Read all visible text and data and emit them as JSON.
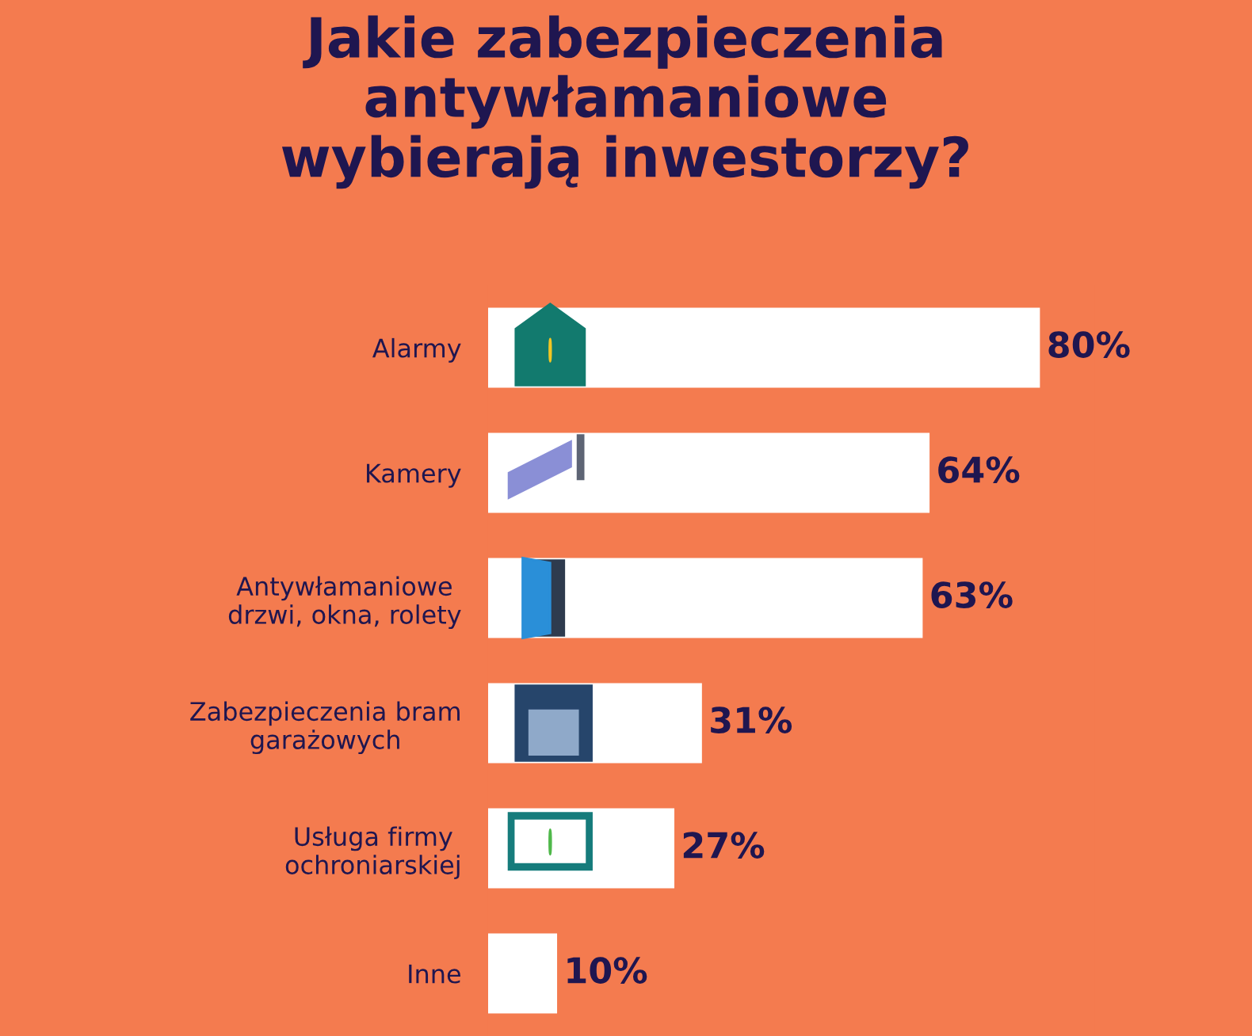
{
  "chart_data": {
    "type": "bar",
    "orientation": "horizontal",
    "title": "Jakie zabezpieczenia\nantywłamaniowe\nwybierają inwestorzy?",
    "categories": [
      "Alarmy",
      "Kamery",
      "Antywłamaniowe\ndrzwi, okna, rolety",
      "Zabezpieczenia bram\ngarażowych",
      "Usługa firmy\nochroniarskiej",
      "Inne"
    ],
    "values": [
      80,
      64,
      63,
      31,
      27,
      10
    ],
    "value_labels": [
      "80%",
      "64%",
      "63%",
      "31%",
      "27%",
      "10%"
    ],
    "color": "#ffffff",
    "tick_labels": "y",
    "grid": false,
    "legend": false
  }
}
